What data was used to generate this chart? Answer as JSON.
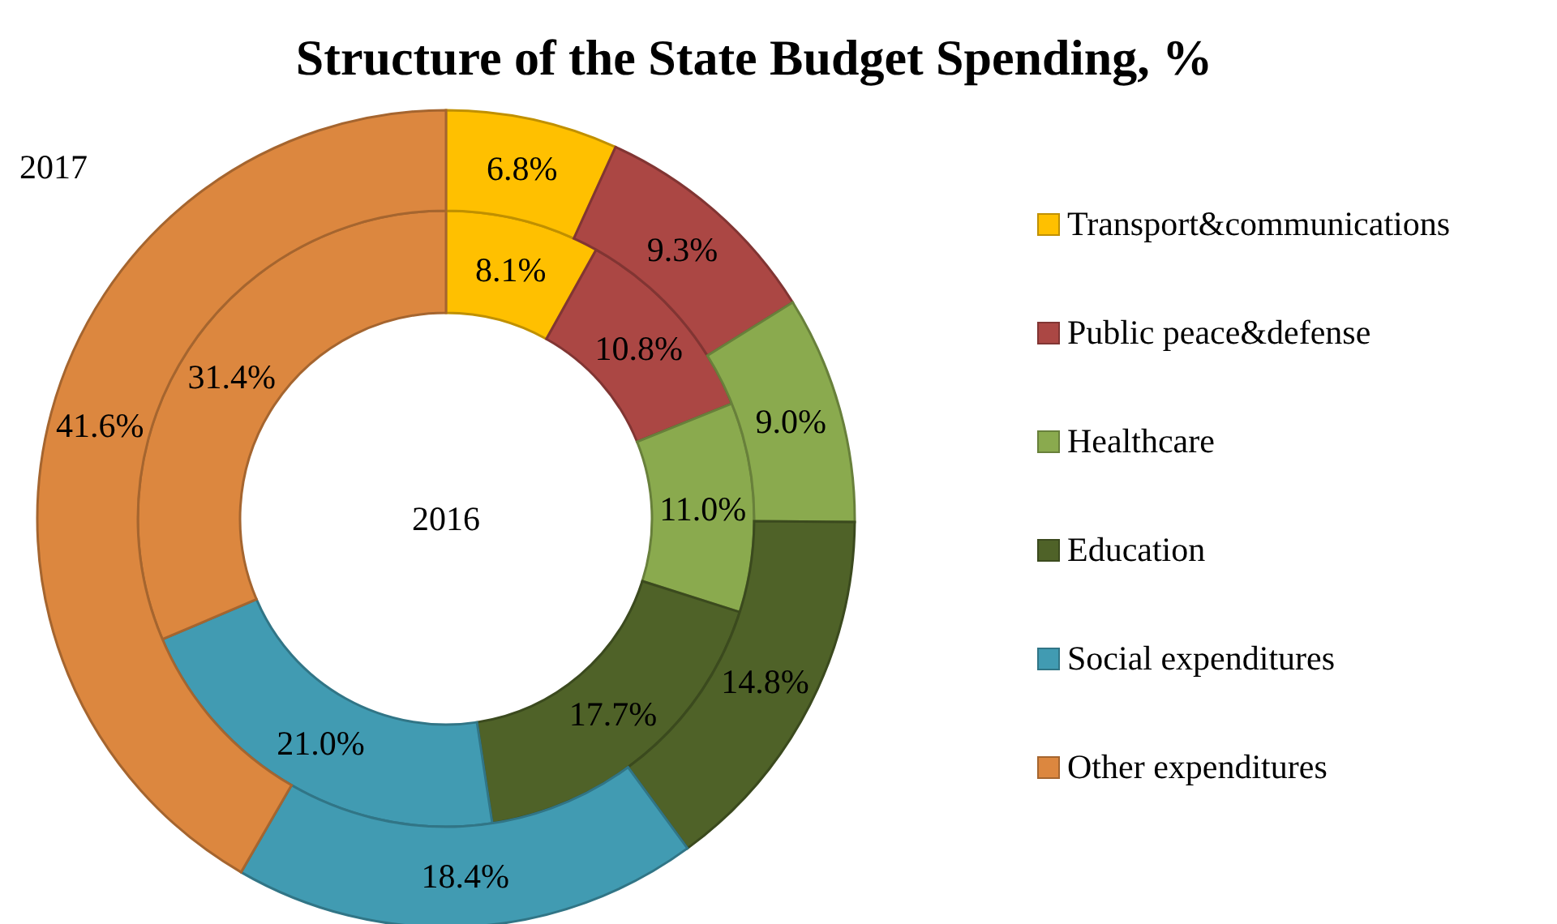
{
  "chart_data": {
    "type": "donut",
    "title": "Structure of the State Budget Spending, %",
    "categories": [
      "Transport&communications",
      "Public peace&defense",
      "Healthcare",
      "Education",
      "Social expenditures",
      "Other expenditures"
    ],
    "colors": [
      "#ffc000",
      "#ab4744",
      "#8aaa4e",
      "#4f6228",
      "#419bb2",
      "#dc873f"
    ],
    "series": [
      {
        "name": "2016",
        "values": [
          8.1,
          10.8,
          11.0,
          17.7,
          21.0,
          31.4
        ],
        "value_labels": [
          "8.1%",
          "10.8%",
          "11.0%",
          "17.7%",
          "21.0%",
          "31.4%"
        ]
      },
      {
        "name": "2017",
        "values": [
          6.8,
          9.3,
          9.0,
          14.8,
          18.4,
          41.6
        ],
        "value_labels": [
          "6.8%",
          "9.3%",
          "9.0%",
          "14.8%",
          "18.4%",
          "41.6%"
        ]
      }
    ],
    "legend": "right"
  }
}
